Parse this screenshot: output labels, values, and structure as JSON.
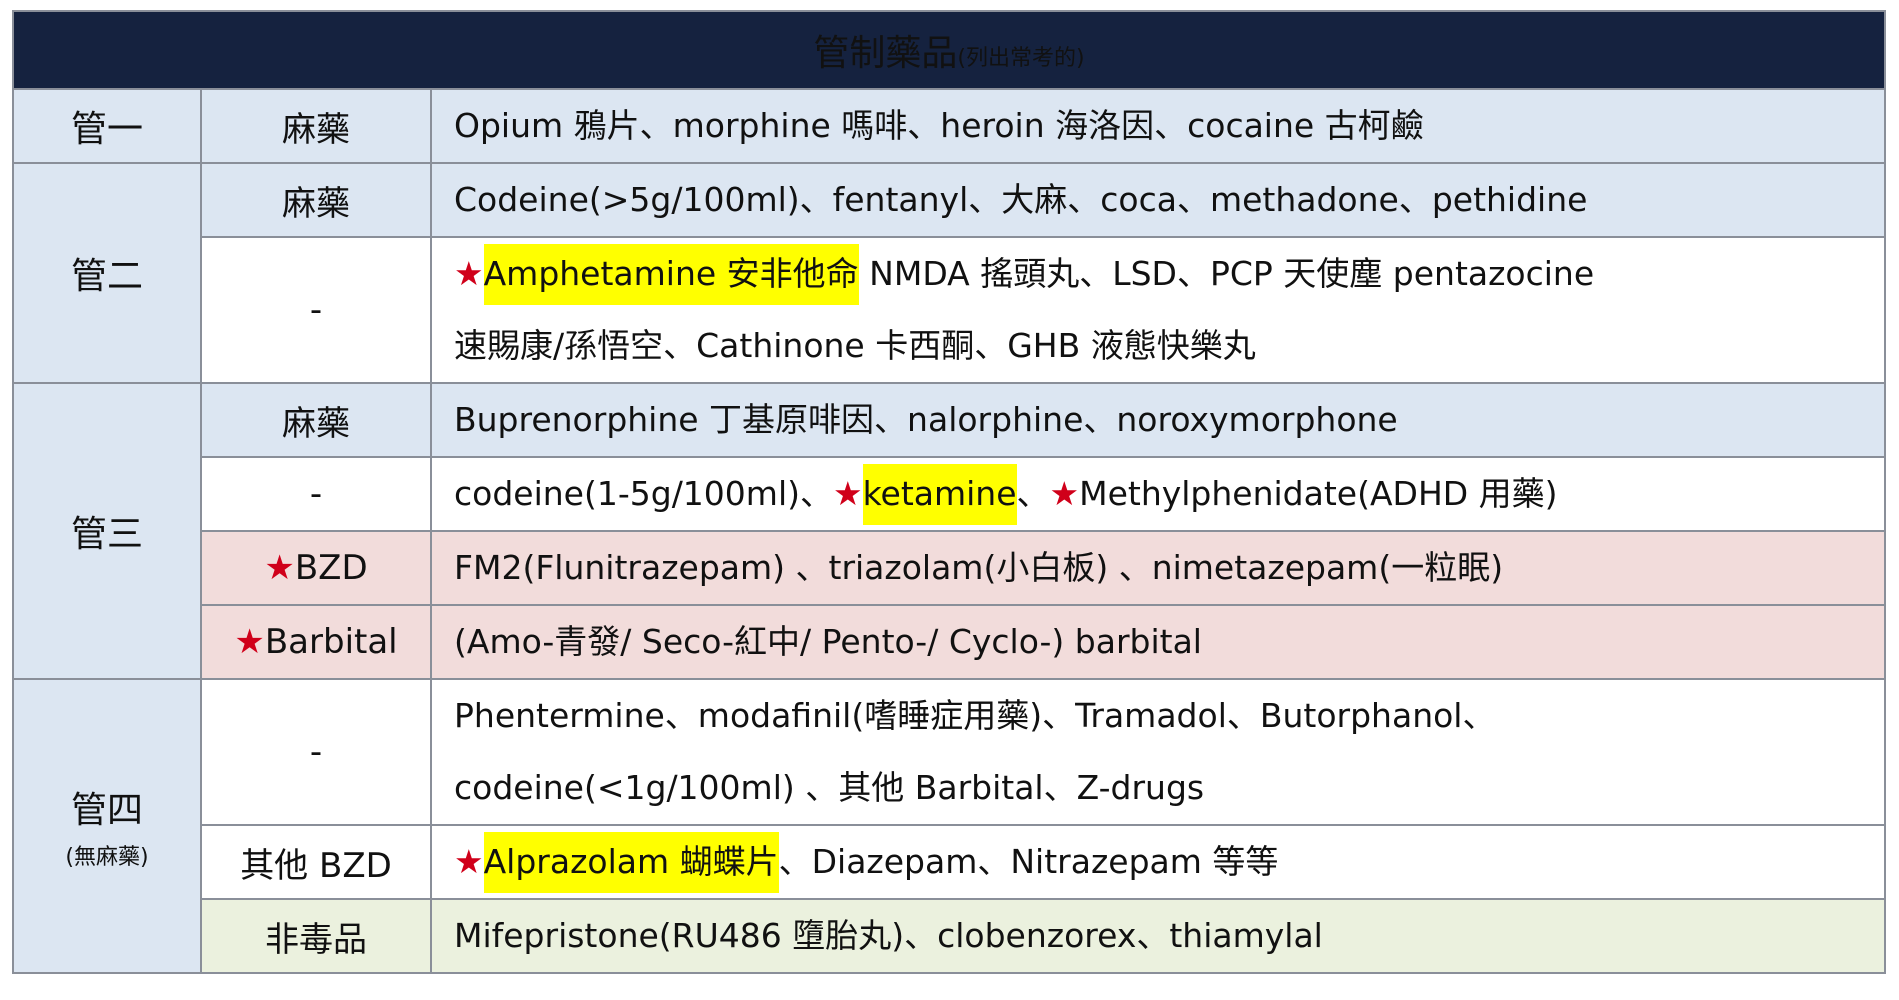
{
  "title": {
    "main": "管制藥品",
    "sub": "(列出常考的)"
  },
  "colors": {
    "header": "#15223f",
    "blue": "#dce6f2",
    "pink": "#f2dcdb",
    "green": "#ebf1de",
    "star": "#d0001a",
    "highlight": "#ffff00"
  },
  "groups": [
    {
      "label": "管一",
      "note": "",
      "rows": [
        {
          "cat": "麻藥",
          "star": false,
          "bg": "blue",
          "lines": [
            [
              {
                "t": "Opium 鴉片、morphine 嗎啡、heroin 海洛因、cocaine 古柯鹼"
              }
            ]
          ]
        }
      ]
    },
    {
      "label": "管二",
      "note": "",
      "rows": [
        {
          "cat": "麻藥",
          "star": false,
          "bg": "blue",
          "lines": [
            [
              {
                "t": "Codeine(>5g/100ml)、fentanyl、大麻、coca、methadone、pethidine"
              }
            ]
          ]
        },
        {
          "cat": "-",
          "star": false,
          "bg": "white",
          "lines": [
            [
              {
                "t": "★",
                "s": true
              },
              {
                "t": "Amphetamine 安非他命",
                "h": true
              },
              {
                "t": " NMDA 搖頭丸、LSD、PCP 天使塵 pentazocine"
              }
            ],
            [
              {
                "t": "速賜康/孫悟空、Cathinone 卡西酮、GHB 液態快樂丸"
              }
            ]
          ]
        }
      ]
    },
    {
      "label": "管三",
      "note": "",
      "rows": [
        {
          "cat": "麻藥",
          "star": false,
          "bg": "blue",
          "lines": [
            [
              {
                "t": "Buprenorphine 丁基原啡因、nalorphine、noroxymorphone"
              }
            ]
          ]
        },
        {
          "cat": "-",
          "star": false,
          "bg": "white",
          "lines": [
            [
              {
                "t": "codeine(1-5g/100ml)、"
              },
              {
                "t": "★",
                "s": true
              },
              {
                "t": "ketamine",
                "h": true
              },
              {
                "t": "、"
              },
              {
                "t": "★",
                "s": true
              },
              {
                "t": "Methylphenidate(ADHD 用藥)"
              }
            ]
          ]
        },
        {
          "cat": "BZD",
          "star": true,
          "bg": "pink",
          "lines": [
            [
              {
                "t": "FM2(Flunitrazepam) 、triazolam(小白板) 、nimetazepam(一粒眠)"
              }
            ]
          ]
        },
        {
          "cat": "Barbital",
          "star": true,
          "bg": "pink",
          "lines": [
            [
              {
                "t": "(Amo-青發/ Seco-紅中/ Pento-/ Cyclo-) barbital"
              }
            ]
          ]
        }
      ]
    },
    {
      "label": "管四",
      "note": "(無麻藥)",
      "rows": [
        {
          "cat": "-",
          "star": false,
          "bg": "white",
          "lines": [
            [
              {
                "t": "Phentermine、modafinil(嗜睡症用藥)、Tramadol、Butorphanol、"
              }
            ],
            [
              {
                "t": "codeine(<1g/100ml) 、其他 Barbital、Z-drugs"
              }
            ]
          ]
        },
        {
          "cat": "其他 BZD",
          "star": false,
          "bg": "white",
          "lines": [
            [
              {
                "t": "★",
                "s": true
              },
              {
                "t": "Alprazolam 蝴蝶片",
                "h": true
              },
              {
                "t": "、Diazepam、Nitrazepam 等等"
              }
            ]
          ]
        },
        {
          "cat": "非毒品",
          "star": false,
          "bg": "green",
          "lines": [
            [
              {
                "t": "Mifepristone(RU486 墮胎丸)、clobenzorex、thiamylal"
              }
            ]
          ]
        }
      ]
    }
  ]
}
